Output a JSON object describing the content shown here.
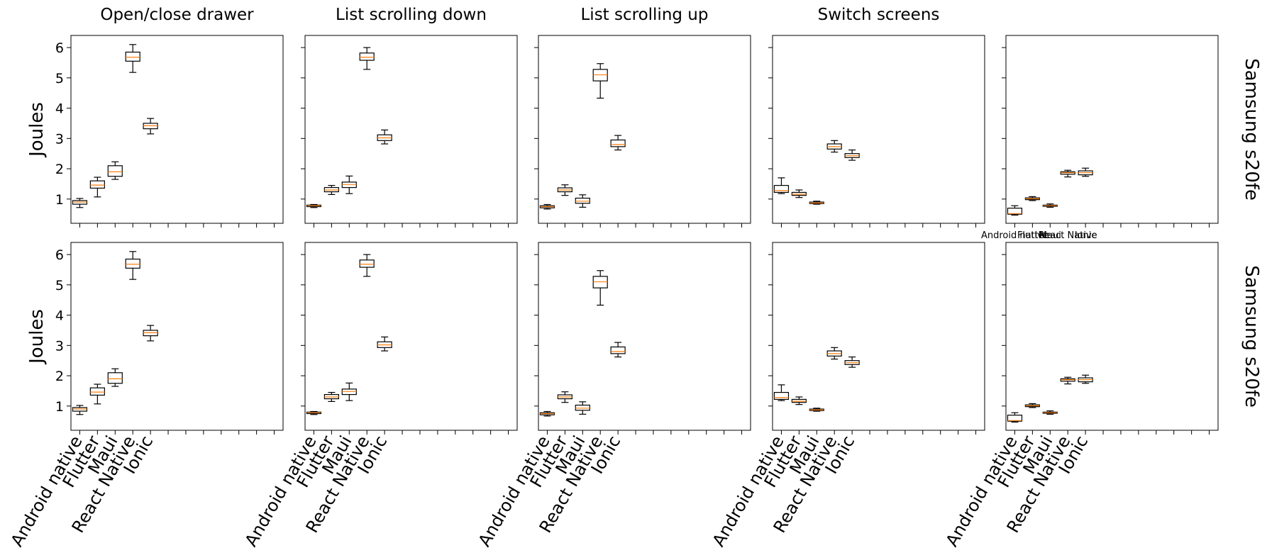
{
  "chart_data": {
    "type": "box",
    "categories": [
      "Android native",
      "Flutter",
      "Maui",
      "React Native",
      "Ionic"
    ],
    "y_label": "Joules",
    "row_labels": [
      "Samsung s20fe",
      "Samsung s20fe"
    ],
    "column_titles": [
      "Open/close drawer",
      "List scrolling down",
      "List scrolling up",
      "Switch screens",
      ""
    ],
    "ylim": [
      0.2,
      6.4
    ],
    "y_ticks": [
      1,
      2,
      3,
      4,
      5,
      6
    ],
    "grid": false,
    "x_slots": 12,
    "colors": {
      "box": "#000000",
      "median": "#ff7f0e"
    },
    "panels": [
      {
        "title": "Open/close drawer",
        "boxes": [
          {
            "label": "Android native",
            "whislo": 0.72,
            "q1": 0.83,
            "med": 0.9,
            "q3": 0.95,
            "whishi": 1.02
          },
          {
            "label": "Flutter",
            "whislo": 1.07,
            "q1": 1.36,
            "med": 1.46,
            "q3": 1.6,
            "whishi": 1.72
          },
          {
            "label": "Maui",
            "whislo": 1.65,
            "q1": 1.75,
            "med": 1.9,
            "q3": 2.1,
            "whishi": 2.23
          },
          {
            "label": "React Native",
            "whislo": 5.18,
            "q1": 5.55,
            "med": 5.68,
            "q3": 5.85,
            "whishi": 6.1
          },
          {
            "label": "Ionic",
            "whislo": 3.15,
            "q1": 3.32,
            "med": 3.42,
            "q3": 3.5,
            "whishi": 3.66
          }
        ]
      },
      {
        "title": "List scrolling down",
        "boxes": [
          {
            "label": "Android native",
            "whislo": 0.72,
            "q1": 0.75,
            "med": 0.78,
            "q3": 0.8,
            "whishi": 0.82
          },
          {
            "label": "Flutter",
            "whislo": 1.15,
            "q1": 1.24,
            "med": 1.3,
            "q3": 1.38,
            "whishi": 1.45
          },
          {
            "label": "Maui",
            "whislo": 1.18,
            "q1": 1.38,
            "med": 1.48,
            "q3": 1.56,
            "whishi": 1.76
          },
          {
            "label": "React Native",
            "whislo": 5.28,
            "q1": 5.58,
            "med": 5.68,
            "q3": 5.82,
            "whishi": 6.0
          },
          {
            "label": "Ionic",
            "whislo": 2.82,
            "q1": 2.93,
            "med": 3.02,
            "q3": 3.12,
            "whishi": 3.28
          }
        ]
      },
      {
        "title": "List scrolling up",
        "boxes": [
          {
            "label": "Android native",
            "whislo": 0.67,
            "q1": 0.71,
            "med": 0.75,
            "q3": 0.78,
            "whishi": 0.82
          },
          {
            "label": "Flutter",
            "whislo": 1.12,
            "q1": 1.24,
            "med": 1.3,
            "q3": 1.37,
            "whishi": 1.47
          },
          {
            "label": "Maui",
            "whislo": 0.73,
            "q1": 0.86,
            "med": 0.93,
            "q3": 1.03,
            "whishi": 1.14
          },
          {
            "label": "React Native",
            "whislo": 4.33,
            "q1": 4.9,
            "med": 5.1,
            "q3": 5.28,
            "whishi": 5.47
          },
          {
            "label": "Ionic",
            "whislo": 2.62,
            "q1": 2.73,
            "med": 2.8,
            "q3": 2.95,
            "whishi": 3.1
          }
        ]
      },
      {
        "title": "Switch screens",
        "boxes": [
          {
            "label": "Android native",
            "whislo": 1.18,
            "q1": 1.22,
            "med": 1.28,
            "q3": 1.45,
            "whishi": 1.7
          },
          {
            "label": "Flutter",
            "whislo": 1.05,
            "q1": 1.12,
            "med": 1.16,
            "q3": 1.22,
            "whishi": 1.3
          },
          {
            "label": "Maui",
            "whislo": 0.83,
            "q1": 0.85,
            "med": 0.87,
            "q3": 0.9,
            "whishi": 0.93
          },
          {
            "label": "React Native",
            "whislo": 2.55,
            "q1": 2.65,
            "med": 2.73,
            "q3": 2.82,
            "whishi": 2.93
          },
          {
            "label": "Ionic",
            "whislo": 2.28,
            "q1": 2.37,
            "med": 2.43,
            "q3": 2.5,
            "whishi": 2.62
          }
        ]
      },
      {
        "title": "",
        "boxes": [
          {
            "label": "Android native",
            "whislo": 0.47,
            "q1": 0.5,
            "med": 0.52,
            "q3": 0.7,
            "whishi": 0.78
          },
          {
            "label": "Flutter",
            "whislo": 0.95,
            "q1": 0.98,
            "med": 1.01,
            "q3": 1.04,
            "whishi": 1.08
          },
          {
            "label": "Maui",
            "whislo": 0.73,
            "q1": 0.76,
            "med": 0.78,
            "q3": 0.8,
            "whishi": 0.84
          },
          {
            "label": "React Native",
            "whislo": 1.73,
            "q1": 1.82,
            "med": 1.87,
            "q3": 1.9,
            "whishi": 1.95
          },
          {
            "label": "Ionic",
            "whislo": 1.75,
            "q1": 1.8,
            "med": 1.87,
            "q3": 1.93,
            "whishi": 2.02
          }
        ]
      }
    ],
    "overlap_tick_labels": [
      "Android native",
      "Flutter",
      "Maui",
      "React Native",
      "Ionic"
    ]
  }
}
